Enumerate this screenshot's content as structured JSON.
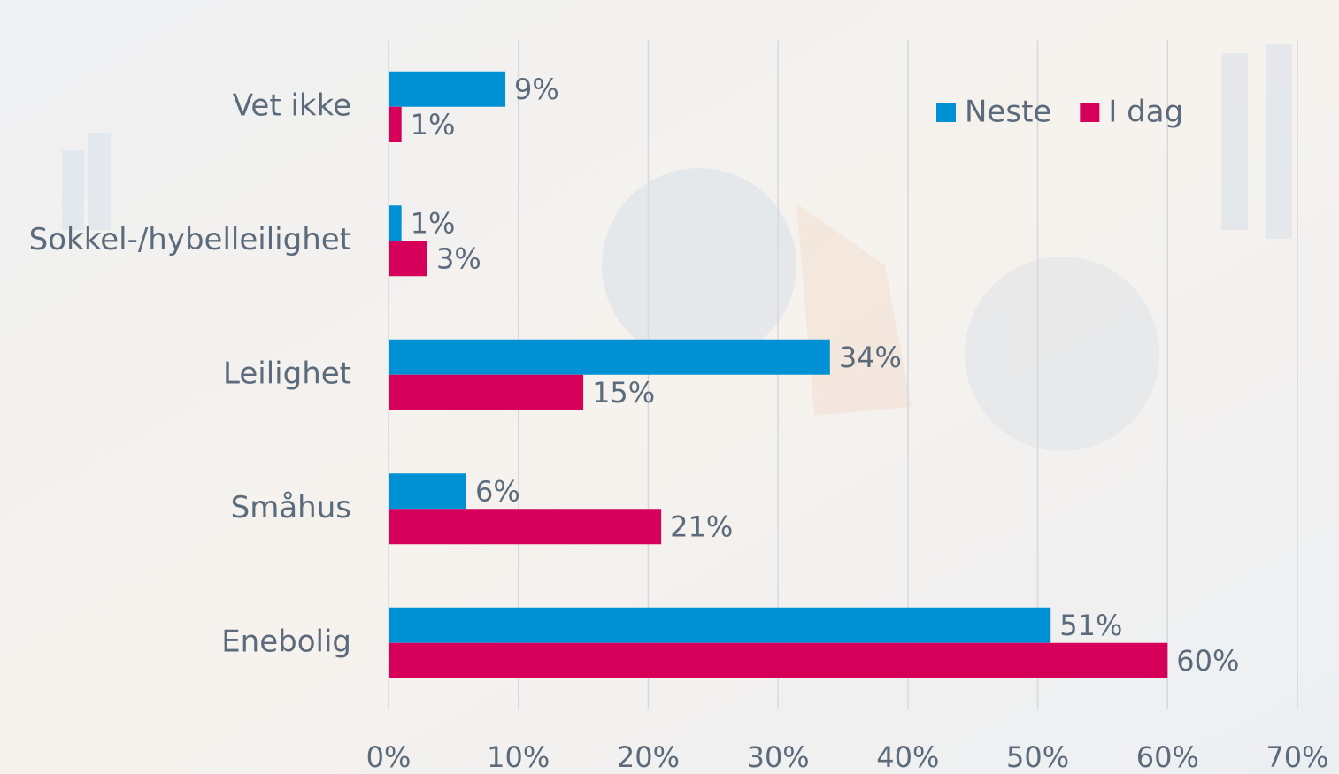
{
  "chart_data": {
    "type": "hbar",
    "categories": [
      "Vet ikke",
      "Sokkel-/hybelleilighet",
      "Leilighet",
      "Småhus",
      "Enebolig"
    ],
    "series": [
      {
        "name": "Neste",
        "color": "#0091d5",
        "values": [
          9,
          1,
          34,
          6,
          51
        ],
        "value_labels": [
          "9%",
          "1%",
          "34%",
          "6%",
          "51%"
        ]
      },
      {
        "name": "I dag",
        "color": "#d6005a",
        "values": [
          1,
          3,
          15,
          21,
          60
        ],
        "value_labels": [
          "1%",
          "3%",
          "15%",
          "21%",
          "60%"
        ]
      }
    ],
    "xlim": [
      0,
      70
    ],
    "xticks": [
      {
        "value": 0,
        "label": "0%"
      },
      {
        "value": 10,
        "label": "10%"
      },
      {
        "value": 20,
        "label": "20%"
      },
      {
        "value": 30,
        "label": "30%"
      },
      {
        "value": 40,
        "label": "40%"
      },
      {
        "value": 50,
        "label": "50%"
      },
      {
        "value": 60,
        "label": "60%"
      },
      {
        "value": 70,
        "label": "70%"
      }
    ],
    "grid": true,
    "legend": "top-right"
  }
}
